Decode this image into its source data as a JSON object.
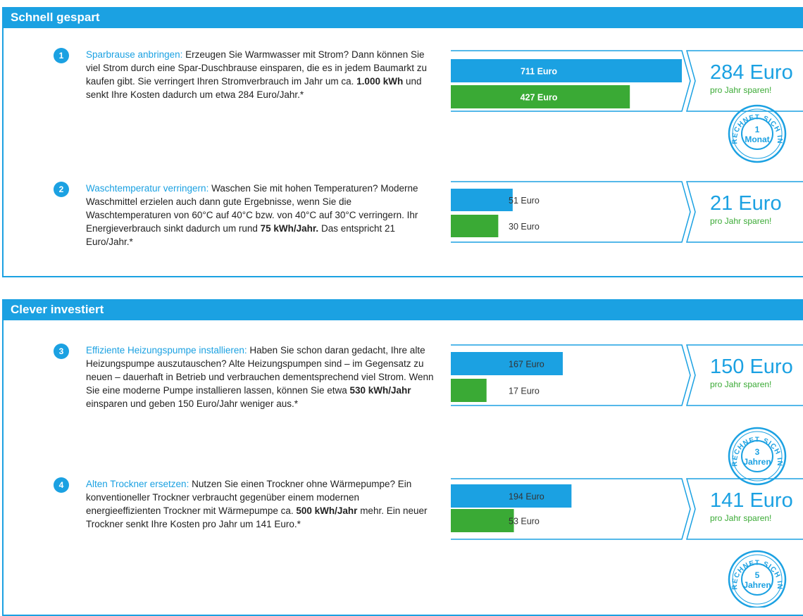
{
  "colors": [
    "#1ba1e2",
    "#3aaa35"
  ],
  "sections": [
    {
      "title": "Schnell gespart",
      "items": [
        {
          "number": "1",
          "title": "Sparbrause anbringen:",
          "body": [
            "Erzeugen Sie Warmwasser mit Strom? Dann können Sie viel Strom durch eine Spar-Duschbrause einsparen, die es in jedem Baumarkt zu kaufen gibt. Sie verringert Ihren Stromverbrauch im Jahr um ca. ",
            "1.000 kWh",
            " und senkt Ihre Kosten dadurch um etwa 284 Euro/Jahr.*"
          ],
          "bars": {
            "values": [
              711,
              427
            ],
            "value_labels": [
              "711 Euro",
              "427 Euro"
            ]
          },
          "saving": "284 Euro",
          "saving_note": "pro Jahr sparen!",
          "stamp": {
            "arc": "RECHNET SICH IN",
            "number": "1",
            "unit": "Monat"
          }
        },
        {
          "number": "2",
          "title": "Waschtemperatur verringern:",
          "body": [
            "Waschen Sie mit hohen Temperaturen? Moderne Waschmittel erzielen auch dann gute Ergebnisse, wenn Sie die Waschtemperaturen von 60°C auf 40°C bzw. von 40°C auf 30°C verringern. Ihr Energieverbrauch sinkt dadurch um rund ",
            "75 kWh/Jahr.",
            " Das entspricht 21 Euro/Jahr.*"
          ],
          "bars": {
            "values": [
              51,
              30
            ],
            "value_labels": [
              "51 Euro",
              "30 Euro"
            ]
          },
          "saving": "21 Euro",
          "saving_note": "pro Jahr sparen!"
        }
      ]
    },
    {
      "title": "Clever investiert",
      "items": [
        {
          "number": "3",
          "title": "Effiziente Heizungspumpe installieren:",
          "body": [
            "Haben Sie schon daran gedacht, Ihre alte Heizungspumpe auszutauschen? Alte Heizungspumpen sind – im Gegensatz zu neuen – dauerhaft in Betrieb und verbrauchen dementsprechend viel Strom. Wenn Sie eine moderne Pumpe installieren lassen, können Sie etwa ",
            "530 kWh/Jahr",
            " einsparen und geben 150 Euro/Jahr weniger aus.*"
          ],
          "bars": {
            "values": [
              167,
              17
            ],
            "value_labels": [
              "167 Euro",
              "17 Euro"
            ]
          },
          "saving": "150 Euro",
          "saving_note": "pro Jahr sparen!",
          "stamp": {
            "arc": "RECHNET SICH IN",
            "number": "3",
            "unit": "Jahren"
          }
        },
        {
          "number": "4",
          "title": "Alten Trockner ersetzen:",
          "body": [
            "Nutzen Sie einen Trockner ohne Wärmepumpe? Ein konventioneller Trockner verbraucht gegenüber einem modernen energieeffizienten Trockner mit Wärmepumpe ca. ",
            "500 kWh/Jahr",
            " mehr. Ein neuer Trockner senkt Ihre Kosten pro Jahr um 141 Euro.*"
          ],
          "bars": {
            "values": [
              194,
              53
            ],
            "value_labels": [
              "194 Euro",
              "53 Euro"
            ]
          },
          "saving": "141 Euro",
          "saving_note": "pro Jahr sparen!",
          "stamp": {
            "arc": "RECHNET SICH IN",
            "number": "5",
            "unit": "Jahren"
          }
        }
      ]
    }
  ]
}
